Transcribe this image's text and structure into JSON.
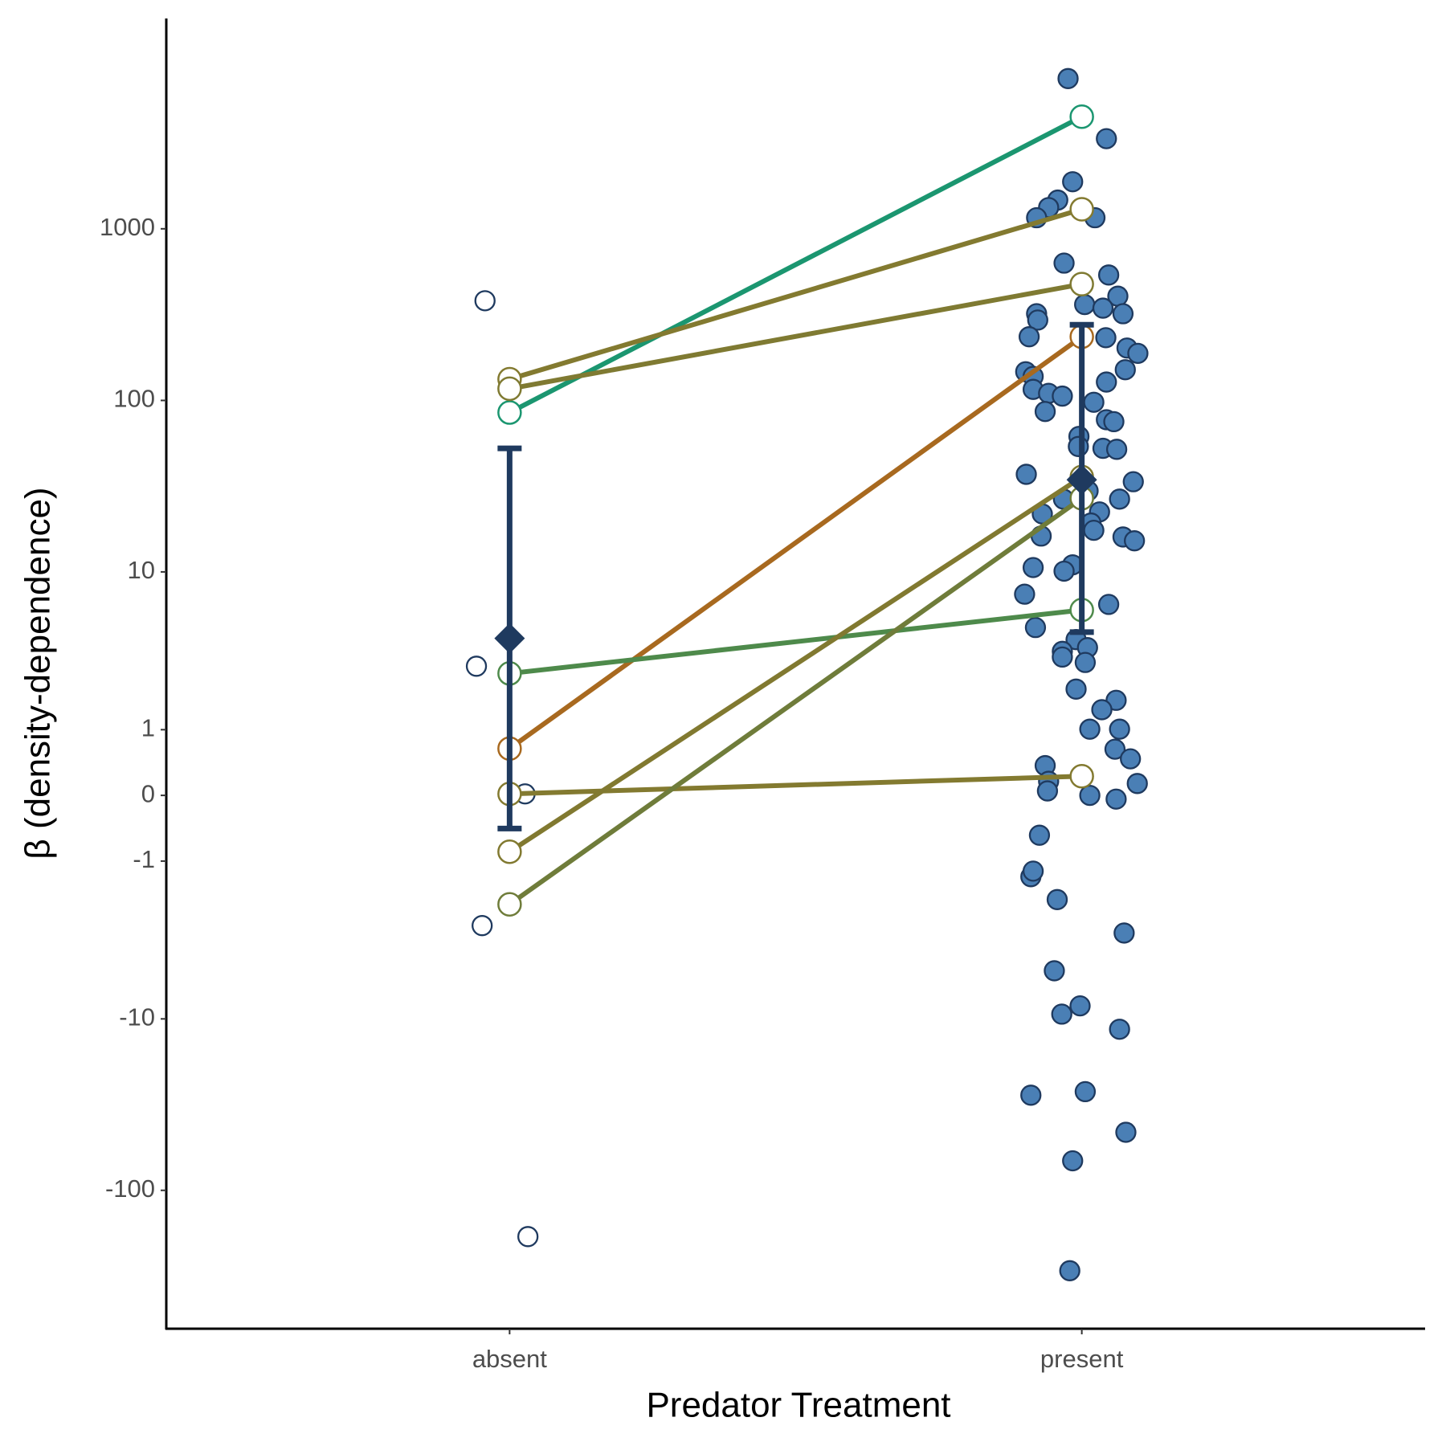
{
  "chart_data": {
    "type": "scatter",
    "y_label": "β (density-dependence)",
    "x_label": "Predator Treatment",
    "yscale": "asinh",
    "ylim": [
      -640,
      16800
    ],
    "yticks": [
      -100,
      -10,
      -1,
      0,
      1,
      10,
      100,
      1000
    ],
    "xlim": [
      0.4,
      2.6
    ],
    "xticks": [
      {
        "value": 1,
        "label": "absent"
      },
      {
        "value": 2,
        "label": "present"
      }
    ],
    "scatter": [
      {
        "stroke": "#1f3a5f",
        "fill": "#ffffff",
        "x": [
          0.957,
          0.942,
          1.027,
          0.952,
          1.032
        ],
        "values": [
          381,
          2.74,
          0.02,
          -2.78,
          -186
        ]
      },
      {
        "stroke": "#1f3a5f",
        "fill": "#4a7fb5",
        "x": [
          1.976,
          2.043,
          1.984,
          1.958,
          1.942,
          1.921,
          2.023,
          1.969,
          2.047,
          2.063,
          2.005,
          2.037,
          2.072,
          1.921,
          1.923,
          1.908,
          2.042,
          2.079,
          2.098,
          2.076,
          1.902,
          1.915,
          2.043,
          1.915,
          1.942,
          1.966,
          2.021,
          1.936,
          2.043,
          2.056,
          1.995,
          1.994,
          2.037,
          2.061,
          1.903,
          2.09,
          2.011,
          1.968,
          2.066,
          2.031,
          1.931,
          2.016,
          2.021,
          1.929,
          2.072,
          2.092,
          1.915,
          1.984,
          1.969,
          1.9,
          2.047,
          1.919,
          1.99,
          2.01,
          1.966,
          1.966,
          2.006,
          1.99,
          2.06,
          2.035,
          2.014,
          2.066,
          2.058,
          2.085,
          1.936,
          1.942,
          2.097,
          1.94,
          2.014,
          2.06,
          1.926,
          1.911,
          1.915,
          1.957,
          2.074,
          1.952,
          1.997,
          1.965,
          2.066,
          2.006,
          1.911,
          2.077,
          1.984,
          1.979
        ],
        "values": [
          7500,
          3350,
          1880,
          1470,
          1330,
          1160,
          1160,
          631,
          538,
          405,
          362,
          345,
          320,
          320,
          294,
          235,
          232,
          202,
          188,
          151,
          147,
          138,
          128,
          116,
          110,
          106,
          97.6,
          86.2,
          77.2,
          75.2,
          61.7,
          53.9,
          52.6,
          51.9,
          37.1,
          33.6,
          29.7,
          26.6,
          26.6,
          22.4,
          21.8,
          19.3,
          17.5,
          16.2,
          16.0,
          15.2,
          10.6,
          11.0,
          10.1,
          7.4,
          6.44,
          4.7,
          3.98,
          3.56,
          3.38,
          3.12,
          2.89,
          1.96,
          1.65,
          1.42,
          1.01,
          1.01,
          0.66,
          0.51,
          0.41,
          0.19,
          0.16,
          0.06,
          0,
          -0.05,
          -0.56,
          -1.32,
          -1.2,
          -1.9,
          -3.09,
          -5.21,
          -8.39,
          -9.38,
          -11.5,
          -26.6,
          -27.9,
          -45.9,
          -67.3,
          -294
        ]
      }
    ],
    "pairs": [
      {
        "color": "#1b9670",
        "values": [
          85,
          4500
        ]
      },
      {
        "color": "#837a30",
        "values": [
          133,
          1300
        ]
      },
      {
        "color": "#7f7a32",
        "values": [
          117,
          476
        ]
      },
      {
        "color": "#a8691f",
        "values": [
          0.67,
          235
        ]
      },
      {
        "color": "#4e8a4b",
        "values": [
          2.47,
          5.97
        ]
      },
      {
        "color": "#837a30",
        "values": [
          0.02,
          0.26
        ]
      },
      {
        "color": "#817930",
        "values": [
          -0.83,
          35.8
        ]
      },
      {
        "color": "#6f7c3a",
        "values": [
          -2.04,
          26.9
        ]
      }
    ],
    "summary": {
      "color": "#1f3a5f",
      "means": [
        4.05,
        34.5
      ],
      "lower": [
        -0.46,
        4.41
      ],
      "upper": [
        52.6,
        276
      ]
    }
  }
}
